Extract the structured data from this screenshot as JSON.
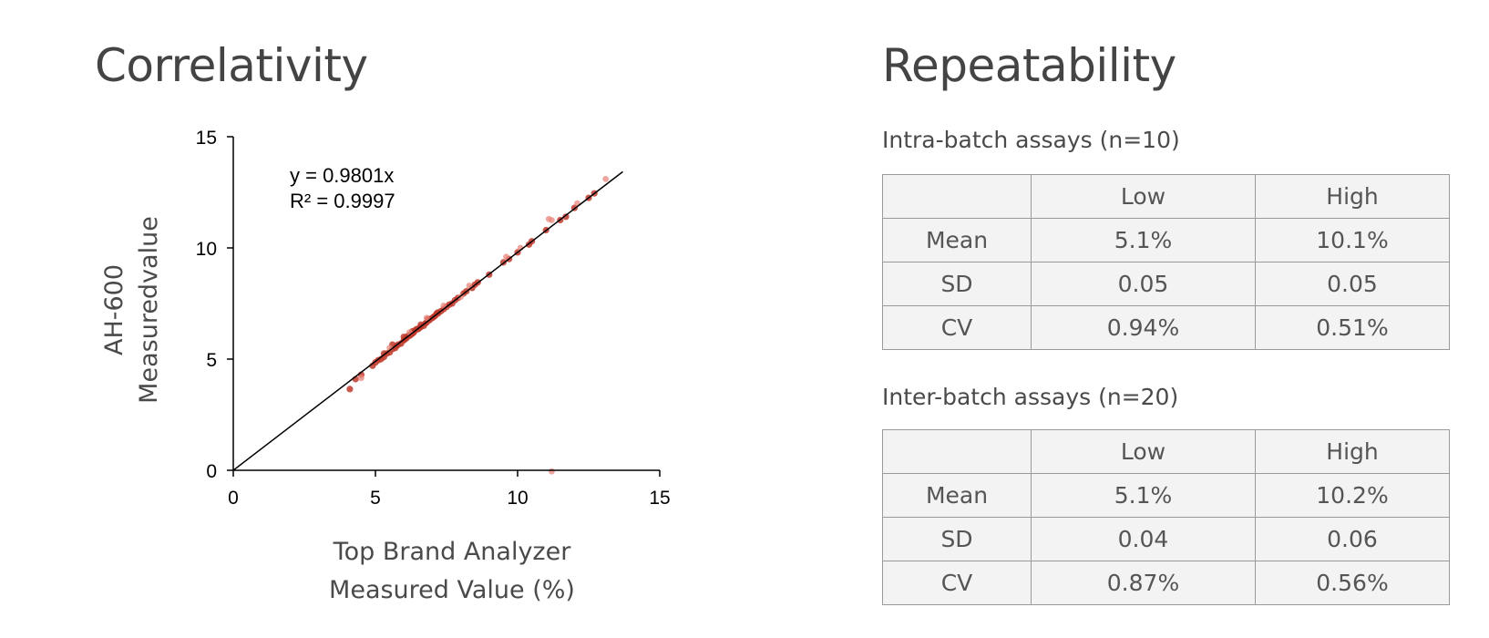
{
  "correlativity": {
    "title": "Correlativity"
  },
  "repeatability": {
    "title": "Repeatability",
    "intra": {
      "caption": "Intra-batch assays (n=10)",
      "header": [
        "",
        "Low",
        "High"
      ],
      "rows": [
        [
          "Mean",
          "5.1%",
          "10.1%"
        ],
        [
          "SD",
          "0.05",
          "0.05"
        ],
        [
          "CV",
          "0.94%",
          "0.51%"
        ]
      ]
    },
    "inter": {
      "caption": "Inter-batch assays (n=20)",
      "header": [
        "",
        "Low",
        "High"
      ],
      "rows": [
        [
          "Mean",
          "5.1%",
          "10.2%"
        ],
        [
          "SD",
          "0.04",
          "0.06"
        ],
        [
          "CV",
          "0.87%",
          "0.56%"
        ]
      ]
    }
  },
  "chart_data": {
    "type": "scatter",
    "title": "",
    "xlabel": [
      "Top Brand Analyzer",
      "Measured Value (%)"
    ],
    "ylabel": [
      "AH-600",
      "Measuredvalue"
    ],
    "xlim": [
      0,
      15
    ],
    "ylim": [
      0,
      15
    ],
    "xticks": [
      "0",
      "5",
      "10",
      "15"
    ],
    "yticks": [
      "0",
      "5",
      "10",
      "15"
    ],
    "grid": false,
    "trendline": {
      "equation": "y = 0.9801x",
      "r_squared": "R² = 0.9997",
      "slope": 0.9801,
      "x_range": [
        0,
        13.7
      ]
    },
    "colors": {
      "point_dark": "#c0392b",
      "point_light": "#e8877c",
      "line": "#000000",
      "axis": "#000000"
    },
    "series": [
      {
        "points": [
          [
            4.1,
            3.65
          ],
          [
            4.3,
            4.1
          ],
          [
            4.5,
            4.3
          ],
          [
            4.9,
            4.7
          ],
          [
            5.0,
            4.85
          ],
          [
            5.1,
            4.95
          ],
          [
            5.2,
            5.0
          ],
          [
            5.3,
            5.1
          ],
          [
            5.4,
            5.25
          ],
          [
            5.5,
            5.3
          ],
          [
            5.6,
            5.45
          ],
          [
            5.7,
            5.5
          ],
          [
            5.75,
            5.6
          ],
          [
            5.8,
            5.65
          ],
          [
            5.9,
            5.7
          ],
          [
            6.0,
            5.85
          ],
          [
            6.05,
            5.9
          ],
          [
            6.1,
            5.95
          ],
          [
            6.2,
            6.05
          ],
          [
            6.25,
            6.1
          ],
          [
            6.3,
            6.15
          ],
          [
            6.35,
            6.2
          ],
          [
            6.4,
            6.3
          ],
          [
            6.5,
            6.35
          ],
          [
            6.55,
            6.4
          ],
          [
            6.6,
            6.45
          ],
          [
            6.7,
            6.5
          ],
          [
            6.75,
            6.6
          ],
          [
            6.8,
            6.65
          ],
          [
            6.9,
            6.75
          ],
          [
            7.0,
            6.85
          ],
          [
            7.05,
            6.9
          ],
          [
            7.1,
            6.95
          ],
          [
            7.2,
            7.05
          ],
          [
            7.3,
            7.15
          ],
          [
            7.4,
            7.25
          ],
          [
            7.5,
            7.35
          ],
          [
            7.6,
            7.45
          ],
          [
            7.7,
            7.5
          ],
          [
            7.8,
            7.65
          ],
          [
            7.9,
            7.75
          ],
          [
            8.1,
            7.95
          ],
          [
            8.2,
            8.05
          ],
          [
            8.4,
            8.2
          ],
          [
            8.5,
            8.35
          ],
          [
            8.6,
            8.45
          ],
          [
            9.0,
            8.8
          ],
          [
            9.5,
            9.35
          ],
          [
            9.7,
            9.5
          ],
          [
            10.0,
            9.8
          ],
          [
            10.4,
            10.15
          ],
          [
            10.5,
            10.3
          ],
          [
            11.0,
            10.8
          ],
          [
            11.5,
            11.25
          ],
          [
            11.7,
            11.4
          ],
          [
            12.0,
            11.8
          ],
          [
            12.5,
            12.25
          ],
          [
            12.7,
            12.45
          ],
          [
            5.6,
            5.65
          ],
          [
            6.0,
            6.0
          ],
          [
            6.3,
            6.25
          ],
          [
            6.6,
            6.55
          ],
          [
            6.9,
            6.8
          ],
          [
            7.2,
            7.1
          ],
          [
            5.3,
            5.25
          ],
          [
            6.15,
            6.05
          ],
          [
            6.45,
            6.35
          ],
          [
            6.85,
            6.8
          ],
          [
            7.15,
            7.05
          ]
        ]
      },
      {
        "points": [
          [
            4.5,
            4.15
          ],
          [
            5.5,
            5.5
          ],
          [
            6.2,
            6.2
          ],
          [
            6.8,
            6.85
          ],
          [
            7.4,
            7.4
          ],
          [
            8.0,
            7.8
          ],
          [
            8.3,
            8.3
          ],
          [
            9.6,
            9.6
          ],
          [
            10.1,
            10.0
          ],
          [
            11.1,
            11.3
          ],
          [
            11.2,
            11.25
          ],
          [
            12.1,
            12.0
          ],
          [
            13.1,
            13.1
          ],
          [
            11.2,
            -0.05
          ]
        ]
      }
    ]
  }
}
